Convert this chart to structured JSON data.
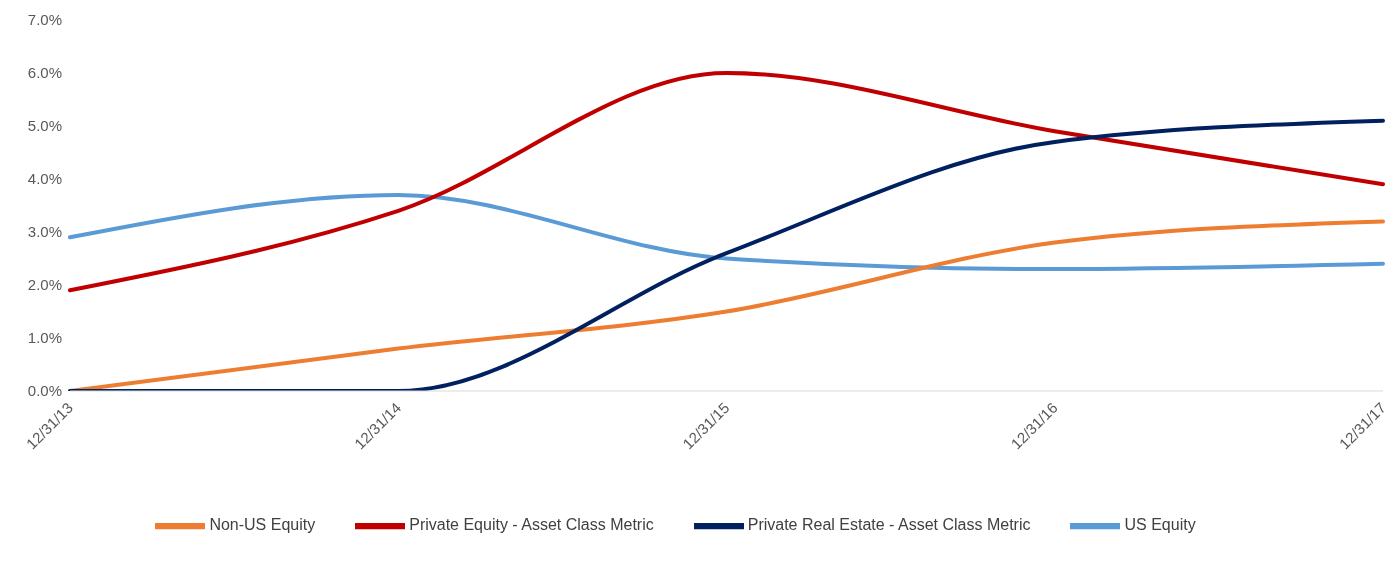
{
  "chart_data": {
    "type": "line",
    "categories": [
      "12/31/13",
      "12/31/14",
      "12/31/15",
      "12/31/16",
      "12/31/17"
    ],
    "series": [
      {
        "name": "US Equity",
        "color": "#5b9bd5",
        "values": [
          2.9,
          3.7,
          2.5,
          2.3,
          2.4
        ]
      },
      {
        "name": "Non-US Equity",
        "color": "#ed7d31",
        "values": [
          0.0,
          0.8,
          1.5,
          2.8,
          3.2
        ]
      },
      {
        "name": "Private Equity - Asset Class Metric",
        "color": "#c00000",
        "values": [
          1.9,
          3.4,
          6.0,
          4.9,
          3.9
        ]
      },
      {
        "name": "Private Real Estate - Asset Class Metric",
        "color": "#002060",
        "values": [
          0.0,
          0.0,
          2.6,
          4.7,
          5.1
        ]
      }
    ],
    "ylim": [
      0,
      7
    ],
    "yticks": [
      {
        "value": 0,
        "label": "0.0%"
      },
      {
        "value": 1,
        "label": "1.0%"
      },
      {
        "value": 2,
        "label": "2.0%"
      },
      {
        "value": 3,
        "label": "3.0%"
      },
      {
        "value": 4,
        "label": "4.0%"
      },
      {
        "value": 5,
        "label": "5.0%"
      },
      {
        "value": 6,
        "label": "6.0%"
      },
      {
        "value": 7,
        "label": "7.0%"
      }
    ],
    "legend": "bottom",
    "marker": "none",
    "line_style": "solid"
  }
}
